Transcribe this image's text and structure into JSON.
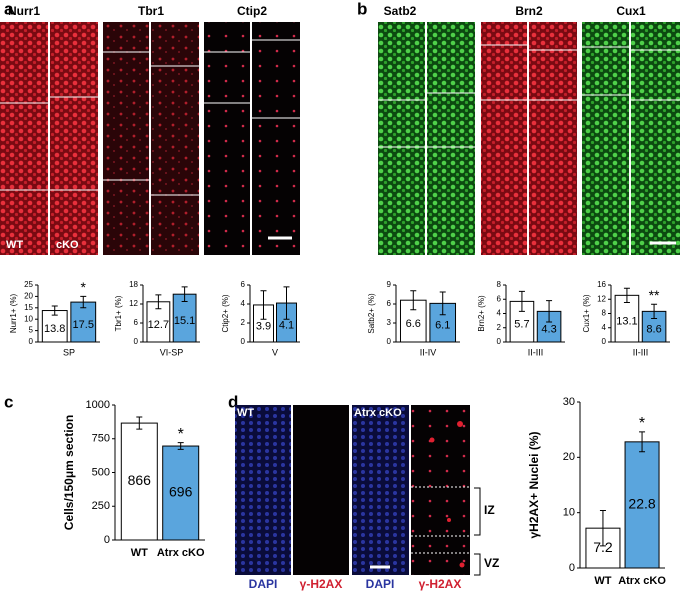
{
  "panel_letters": [
    "a",
    "b",
    "c",
    "d"
  ],
  "images": {
    "a_markers": [
      "Nurr1",
      "Tbr1",
      "Ctip2"
    ],
    "a_genotypes": [
      "WT",
      "cKO"
    ],
    "b_markers": [
      "Satb2",
      "Brn2",
      "Cux1"
    ],
    "d_genotypes": [
      "WT",
      "Atrx cKO"
    ],
    "d_stains": [
      "DAPI",
      "γ-H2AX",
      "DAPI",
      "γ-H2AX"
    ],
    "d_zones": [
      "IZ",
      "VZ"
    ]
  },
  "chart_data": [
    {
      "type": "bar",
      "ylabel": "Nurr1+ (%)",
      "xlabel": "SP",
      "values": [
        13.8,
        17.5
      ],
      "errors": [
        2,
        2.5
      ],
      "colors": [
        "#ffffff",
        "#5aa5dd"
      ],
      "ylim": [
        0,
        25
      ],
      "yticks": [
        0,
        5,
        10,
        15,
        20,
        25
      ],
      "annotation": "*"
    },
    {
      "type": "bar",
      "ylabel": "Tbr1+ (%)",
      "xlabel": "VI-SP",
      "values": [
        12.7,
        15.1
      ],
      "errors": [
        2.2,
        2.3
      ],
      "colors": [
        "#ffffff",
        "#5aa5dd"
      ],
      "ylim": [
        0,
        18
      ],
      "yticks": [
        0,
        6,
        12,
        18
      ]
    },
    {
      "type": "bar",
      "ylabel": "Ctip2+ (%)",
      "xlabel": "V",
      "values": [
        3.9,
        4.1
      ],
      "errors": [
        1.5,
        1.7
      ],
      "colors": [
        "#ffffff",
        "#5aa5dd"
      ],
      "ylim": [
        0,
        6
      ],
      "yticks": [
        0,
        2,
        4,
        6
      ]
    },
    {
      "type": "bar",
      "ylabel": "Satb2+ (%)",
      "xlabel": "II-IV",
      "values": [
        6.6,
        6.1
      ],
      "errors": [
        1.5,
        1.8
      ],
      "colors": [
        "#ffffff",
        "#5aa5dd"
      ],
      "ylim": [
        0,
        9
      ],
      "yticks": [
        0,
        3,
        6,
        9
      ]
    },
    {
      "type": "bar",
      "ylabel": "Brn2+ (%)",
      "xlabel": "II-III",
      "values": [
        5.7,
        4.3
      ],
      "errors": [
        1.4,
        1.5
      ],
      "colors": [
        "#ffffff",
        "#5aa5dd"
      ],
      "ylim": [
        0,
        8
      ],
      "yticks": [
        0,
        2,
        4,
        6,
        8
      ]
    },
    {
      "type": "bar",
      "ylabel": "Cux1+ (%)",
      "xlabel": "II-III",
      "values": [
        13.1,
        8.6
      ],
      "errors": [
        2,
        2
      ],
      "colors": [
        "#ffffff",
        "#5aa5dd"
      ],
      "ylim": [
        0,
        16
      ],
      "yticks": [
        0,
        4,
        8,
        12,
        16
      ],
      "annotation": "**"
    },
    {
      "type": "bar",
      "ylabel": "Cells/150μm section",
      "categories": [
        "WT",
        "Atrx cKO"
      ],
      "values": [
        866,
        696
      ],
      "errors": [
        45,
        25
      ],
      "colors": [
        "#ffffff",
        "#5aa5dd"
      ],
      "ylim": [
        0,
        1000
      ],
      "yticks": [
        0,
        250,
        500,
        750,
        1000
      ],
      "annotation": "*"
    },
    {
      "type": "bar",
      "ylabel": "γH2AX+ Nuclei (%)",
      "categories": [
        "WT",
        "Atrx cKO"
      ],
      "values": [
        7.2,
        22.8
      ],
      "errors": [
        3.2,
        1.8
      ],
      "colors": [
        "#ffffff",
        "#5aa5dd"
      ],
      "ylim": [
        0,
        30
      ],
      "yticks": [
        0,
        10,
        20,
        30
      ],
      "annotation": "*"
    }
  ]
}
